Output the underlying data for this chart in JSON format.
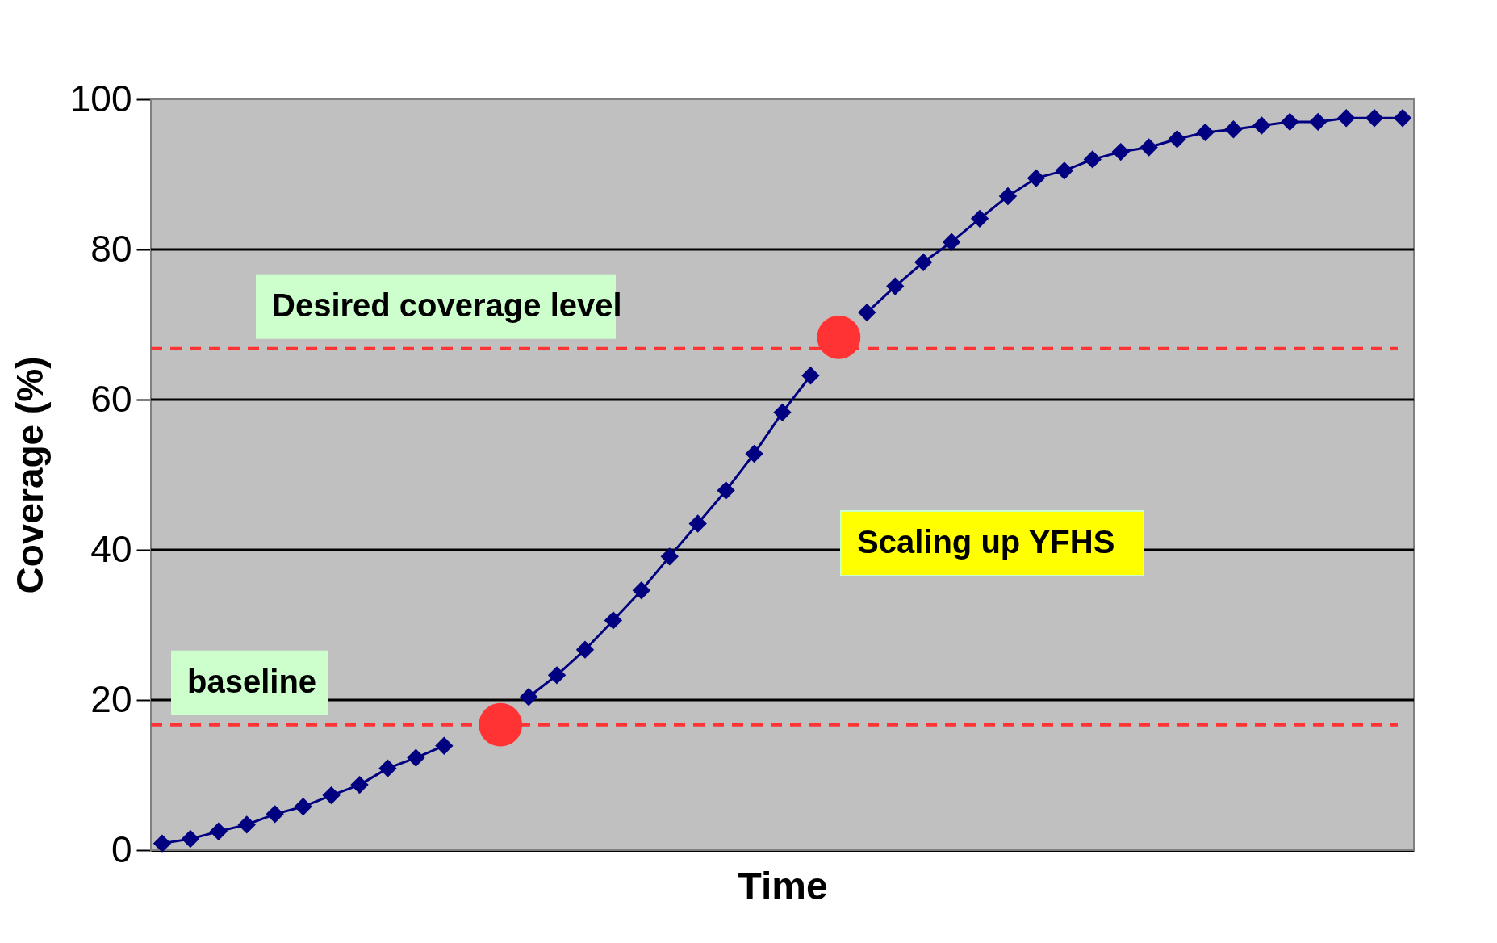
{
  "chart_data": {
    "type": "line",
    "xlabel": "Time",
    "ylabel": "Coverage (%)",
    "categories": [
      null,
      null,
      null,
      null,
      null,
      null,
      null,
      null,
      null,
      null,
      null,
      null,
      null,
      null,
      null,
      null,
      null,
      null,
      null,
      null,
      null,
      null,
      null,
      null,
      null,
      null,
      null,
      null,
      null,
      null,
      null,
      null,
      null,
      null,
      null,
      null,
      null,
      null,
      null,
      null,
      null,
      null,
      null,
      null,
      null
    ],
    "series": [
      {
        "type": "line",
        "color": "#000080",
        "line_style": "solid",
        "marker": "diamond",
        "values": [
          0.9,
          1.5,
          2.5,
          3.4,
          4.8,
          5.8,
          7.3,
          8.7,
          10.9,
          12.3,
          13.9,
          null,
          null,
          20.4,
          23.3,
          26.7,
          30.6,
          34.6,
          39.1,
          43.5,
          47.9,
          52.8,
          58.3,
          63.2,
          null,
          71.6,
          75.1,
          78.3,
          81.0,
          84.1,
          87.1,
          89.5,
          90.5,
          92.0,
          93.0,
          93.6,
          94.7,
          95.6,
          96.0,
          96.5,
          97.0,
          97.0,
          97.5,
          97.5,
          97.5
        ]
      },
      {
        "type": "scatter",
        "color": "#ff3333",
        "marker": "circle",
        "values": [
          null,
          null,
          null,
          null,
          null,
          null,
          null,
          null,
          null,
          null,
          null,
          null,
          16.7,
          null,
          null,
          null,
          null,
          null,
          null,
          null,
          null,
          null,
          null,
          null,
          68.3,
          null,
          null,
          null,
          null,
          null,
          null,
          null,
          null,
          null,
          null,
          null,
          null,
          null,
          null,
          null,
          null,
          null,
          null,
          null,
          null
        ]
      }
    ],
    "ylim": [
      0,
      100
    ],
    "yticks": [
      0,
      20,
      40,
      60,
      80,
      100
    ],
    "grid": "y",
    "tick_labels": "y",
    "ref_lines": [
      {
        "axis": "y",
        "value": 66.8,
        "label": "Desired coverage level",
        "color": "#ff3333",
        "line_style": "dashed"
      },
      {
        "axis": "y",
        "value": 16.7,
        "label": "baseline",
        "color": "#ff3333",
        "line_style": "dashed"
      }
    ],
    "annotations": [
      "Scaling up YFHS"
    ]
  }
}
